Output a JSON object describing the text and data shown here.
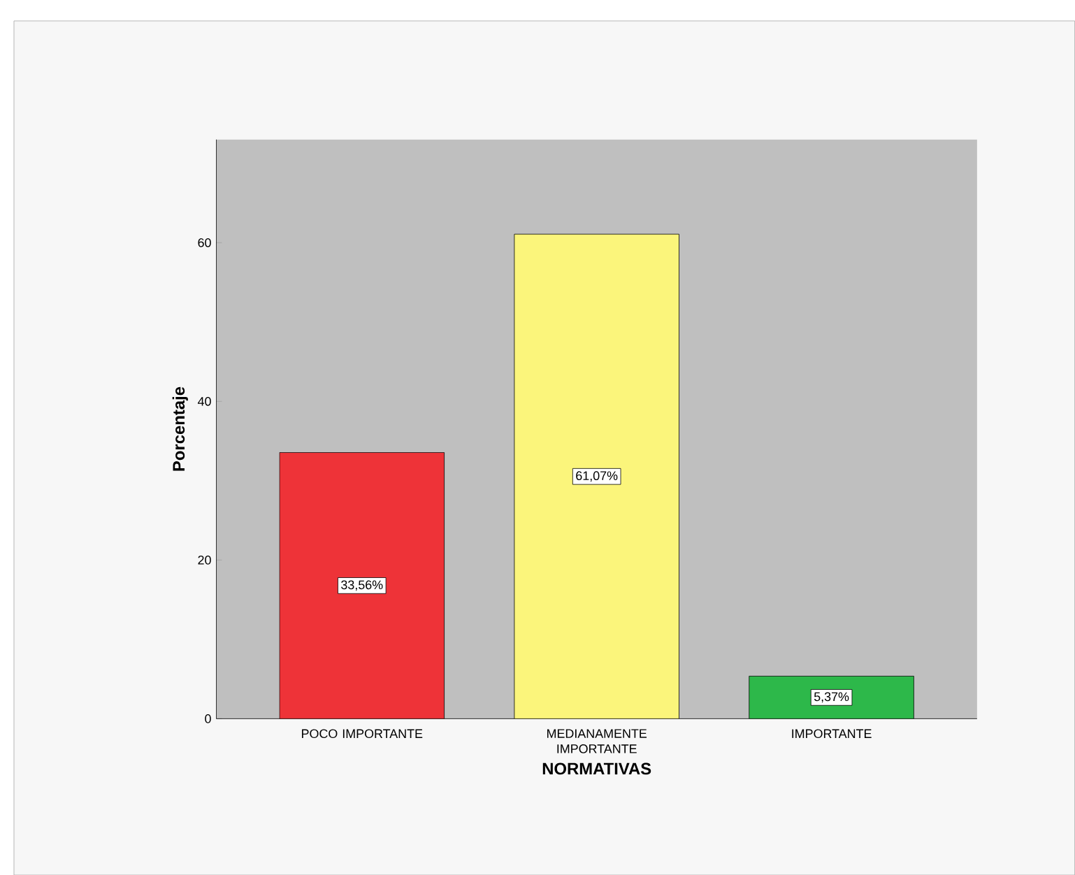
{
  "chart_data": {
    "type": "bar",
    "xlabel": "NORMATIVAS",
    "ylabel": "Porcentaje",
    "categories": [
      "POCO IMPORTANTE",
      "MEDIANAMENTE IMPORTANTE",
      "IMPORTANTE"
    ],
    "values": [
      33.56,
      61.07,
      5.37
    ],
    "colors": [
      "#ee3338",
      "#fbf57b",
      "#2db84a"
    ],
    "value_labels": [
      "33,56%",
      "61,07%",
      "5,37%"
    ],
    "ylim": [
      0,
      73
    ],
    "yticks": [
      0,
      20,
      40,
      60
    ],
    "grid": false
  }
}
